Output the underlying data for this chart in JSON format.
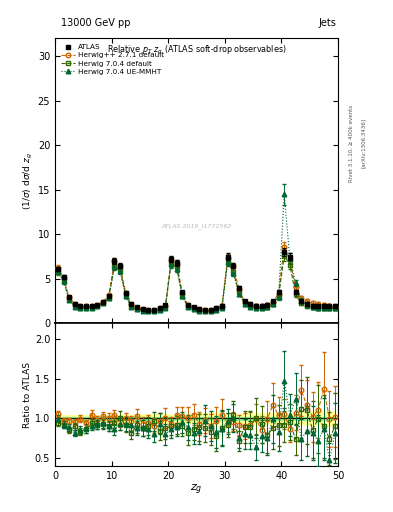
{
  "title_left": "13000 GeV pp",
  "title_right": "Jets",
  "plot_title": "Relative $p_T$ $z_g$ (ATLAS soft-drop observables)",
  "ylabel_main": "(1/σ) dσ/d z_g",
  "ylabel_ratio": "Ratio to ATLAS",
  "xlabel": "z_g",
  "right_label": "Rivet 3.1.10, ≥ 400k events",
  "arxiv_label": "[arXiv:1306.3436]",
  "watermark": "ATLAS 2019_I1772562",
  "ylim_main": [
    0,
    32
  ],
  "ylim_ratio": [
    0.4,
    2.2
  ],
  "xlim": [
    0,
    50
  ],
  "yticks_main": [
    0,
    5,
    10,
    15,
    20,
    25,
    30
  ],
  "yticks_ratio": [
    0.5,
    1.0,
    1.5,
    2.0
  ],
  "xticks": [
    0,
    10,
    20,
    30,
    40,
    50
  ],
  "col_atlas": "#000000",
  "col_herwigpp": "#cc6600",
  "col_herwig704": "#336600",
  "col_herwig704ue": "#006633",
  "col_band_yellow": "#ffff99",
  "col_band_green": "#99ee99",
  "x": [
    0.5,
    1.5,
    2.5,
    3.5,
    4.5,
    5.5,
    6.5,
    7.5,
    8.5,
    9.5,
    10.5,
    11.5,
    12.5,
    13.5,
    14.5,
    15.5,
    16.5,
    17.5,
    18.5,
    19.5,
    20.5,
    21.5,
    22.5,
    23.5,
    24.5,
    25.5,
    26.5,
    27.5,
    28.5,
    29.5,
    30.5,
    31.5,
    32.5,
    33.5,
    34.5,
    35.5,
    36.5,
    37.5,
    38.5,
    39.5,
    40.5,
    41.5,
    42.5,
    43.5,
    44.5,
    45.5,
    46.5,
    47.5,
    48.5,
    49.5
  ],
  "y_atlas": [
    6.1,
    5.2,
    3.0,
    2.2,
    2.0,
    1.9,
    1.95,
    2.05,
    2.4,
    3.1,
    7.0,
    6.5,
    3.4,
    2.2,
    1.8,
    1.6,
    1.55,
    1.55,
    1.75,
    2.05,
    7.2,
    6.8,
    3.5,
    2.1,
    1.8,
    1.6,
    1.5,
    1.5,
    1.7,
    2.0,
    7.5,
    6.5,
    4.0,
    2.5,
    2.2,
    2.0,
    2.0,
    2.1,
    2.5,
    3.5,
    8.0,
    7.5,
    3.5,
    2.5,
    2.2,
    2.0,
    2.0,
    2.0,
    2.0,
    2.0
  ],
  "y_atlas_err": [
    0.25,
    0.2,
    0.13,
    0.09,
    0.08,
    0.08,
    0.08,
    0.08,
    0.1,
    0.13,
    0.3,
    0.28,
    0.16,
    0.1,
    0.08,
    0.08,
    0.08,
    0.08,
    0.1,
    0.13,
    0.32,
    0.32,
    0.18,
    0.13,
    0.1,
    0.1,
    0.1,
    0.1,
    0.13,
    0.15,
    0.35,
    0.3,
    0.2,
    0.16,
    0.13,
    0.13,
    0.13,
    0.15,
    0.18,
    0.22,
    0.45,
    0.4,
    0.22,
    0.18,
    0.18,
    0.18,
    0.18,
    0.18,
    0.18,
    0.18
  ],
  "y_herwigpp": [
    6.25,
    5.1,
    2.95,
    2.15,
    1.95,
    1.9,
    1.95,
    2.05,
    2.45,
    3.15,
    7.0,
    6.4,
    3.45,
    2.15,
    1.78,
    1.58,
    1.48,
    1.48,
    1.68,
    1.98,
    7.1,
    6.7,
    3.45,
    2.05,
    1.78,
    1.58,
    1.48,
    1.48,
    1.68,
    1.98,
    7.4,
    6.4,
    3.85,
    2.45,
    2.15,
    1.98,
    1.93,
    2.03,
    2.45,
    3.35,
    8.6,
    7.1,
    4.05,
    2.85,
    2.55,
    2.25,
    2.15,
    2.03,
    1.95,
    1.83
  ],
  "y_herwigpp_err": [
    0.3,
    0.25,
    0.15,
    0.1,
    0.1,
    0.1,
    0.1,
    0.1,
    0.12,
    0.15,
    0.35,
    0.32,
    0.18,
    0.12,
    0.1,
    0.1,
    0.1,
    0.1,
    0.12,
    0.15,
    0.38,
    0.38,
    0.2,
    0.15,
    0.12,
    0.12,
    0.12,
    0.12,
    0.15,
    0.18,
    0.42,
    0.35,
    0.22,
    0.18,
    0.15,
    0.15,
    0.15,
    0.18,
    0.22,
    0.28,
    0.55,
    0.48,
    0.28,
    0.22,
    0.22,
    0.22,
    0.22,
    0.22,
    0.22,
    0.22
  ],
  "y_herwig704": [
    5.8,
    4.8,
    2.7,
    1.9,
    1.75,
    1.7,
    1.8,
    1.95,
    2.3,
    2.9,
    6.5,
    6.0,
    3.1,
    1.9,
    1.6,
    1.45,
    1.4,
    1.4,
    1.55,
    1.8,
    6.8,
    6.3,
    3.1,
    1.85,
    1.6,
    1.45,
    1.4,
    1.4,
    1.55,
    1.8,
    7.0,
    5.8,
    3.5,
    2.2,
    1.9,
    1.75,
    1.75,
    1.85,
    2.2,
    3.0,
    7.6,
    6.6,
    3.25,
    2.25,
    1.95,
    1.83,
    1.78,
    1.78,
    1.78,
    1.78
  ],
  "y_herwig704_err": [
    0.32,
    0.27,
    0.15,
    0.1,
    0.1,
    0.1,
    0.1,
    0.1,
    0.12,
    0.15,
    0.38,
    0.35,
    0.18,
    0.12,
    0.1,
    0.1,
    0.1,
    0.1,
    0.12,
    0.15,
    0.42,
    0.38,
    0.2,
    0.15,
    0.12,
    0.12,
    0.12,
    0.12,
    0.15,
    0.18,
    0.45,
    0.38,
    0.22,
    0.18,
    0.15,
    0.15,
    0.15,
    0.18,
    0.22,
    0.28,
    0.55,
    0.5,
    0.25,
    0.22,
    0.22,
    0.22,
    0.22,
    0.22,
    0.22,
    0.22
  ],
  "y_herwig704ue": [
    5.85,
    4.75,
    2.65,
    1.88,
    1.73,
    1.68,
    1.78,
    1.93,
    2.25,
    2.85,
    6.35,
    5.85,
    3.05,
    1.88,
    1.58,
    1.43,
    1.38,
    1.38,
    1.53,
    1.78,
    6.65,
    6.15,
    3.05,
    1.83,
    1.58,
    1.43,
    1.38,
    1.38,
    1.53,
    1.78,
    6.85,
    5.65,
    3.35,
    2.15,
    1.88,
    1.73,
    1.73,
    1.83,
    2.15,
    2.95,
    14.5,
    7.25,
    4.55,
    2.55,
    2.05,
    1.83,
    1.73,
    1.73,
    1.73,
    1.73
  ],
  "y_herwig704ue_err": [
    0.32,
    0.27,
    0.15,
    0.1,
    0.1,
    0.1,
    0.1,
    0.1,
    0.12,
    0.15,
    0.38,
    0.35,
    0.18,
    0.12,
    0.1,
    0.1,
    0.1,
    0.1,
    0.12,
    0.15,
    0.42,
    0.38,
    0.2,
    0.15,
    0.12,
    0.12,
    0.12,
    0.12,
    0.15,
    0.18,
    0.45,
    0.38,
    0.22,
    0.18,
    0.15,
    0.15,
    0.15,
    0.18,
    0.22,
    0.28,
    1.2,
    0.6,
    0.35,
    0.28,
    0.22,
    0.22,
    0.22,
    0.22,
    0.22,
    0.22
  ]
}
